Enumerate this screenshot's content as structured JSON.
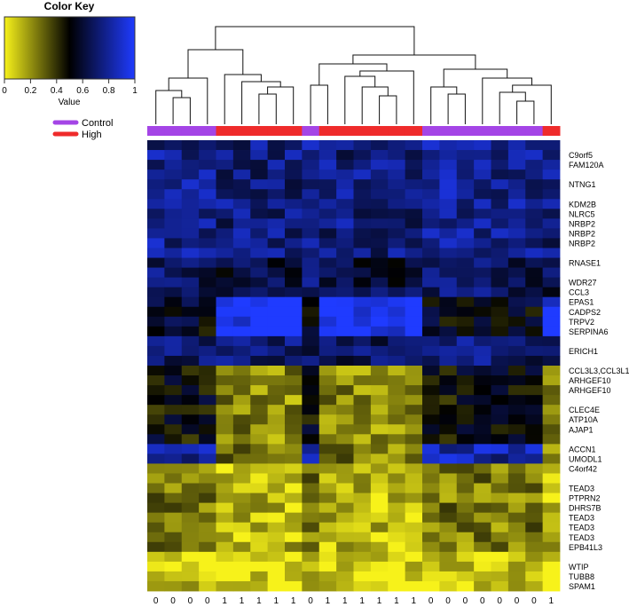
{
  "color_key": {
    "title": "Color Key",
    "ticks": [
      "0",
      "0.2",
      "0.4",
      "0.6",
      "0.8",
      "1"
    ],
    "xlabel": "Value",
    "colors": [
      "#f7f21a",
      "#000000",
      "#1f3bff"
    ]
  },
  "legend": [
    {
      "label": "Control",
      "color": "#a445e6"
    },
    {
      "label": "High",
      "color": "#ef2b2b"
    }
  ],
  "chart_data": {
    "type": "heatmap",
    "value_range": [
      0,
      1
    ],
    "columns": [
      "0",
      "0",
      "0",
      "0",
      "1",
      "1",
      "1",
      "1",
      "1",
      "0",
      "1",
      "1",
      "1",
      "1",
      "1",
      "1",
      "0",
      "0",
      "0",
      "0",
      "0",
      "0",
      "0",
      "1"
    ],
    "column_groups": [
      "Control",
      "Control",
      "Control",
      "Control",
      "High",
      "High",
      "High",
      "High",
      "High",
      "Control",
      "High",
      "High",
      "High",
      "High",
      "High",
      "High",
      "Control",
      "Control",
      "Control",
      "Control",
      "Control",
      "Control",
      "Control",
      "High"
    ],
    "rows": [
      "",
      "C9orf5",
      "FAM120A",
      "",
      "NTNG1",
      "",
      "KDM2B",
      "NLRC5",
      "NRBP2",
      "NRBP2",
      "NRBP2",
      "",
      "RNASE1",
      "",
      "WDR27",
      "CCL3",
      "EPAS1",
      "CADPS2",
      "TRPV2",
      "SERPINA6",
      "",
      "ERICH1",
      "",
      "CCL3L3,CCL3L1",
      "ARHGEF10",
      "ARHGEF10",
      "",
      "CLEC4E",
      "ATP10A",
      "AJAP1",
      "",
      "ACCN1",
      "UMODL1",
      "C4orf42",
      "",
      "TEAD3",
      "PTPRN2",
      "DHRS7B",
      "TEAD3",
      "TEAD3",
      "TEAD3",
      "EPB41L3",
      "",
      "WTIP",
      "TUBB8",
      "SPAM1"
    ],
    "row_blocks": [
      {
        "rows": [
          0,
          11
        ],
        "control": 0.78,
        "high": 0.74
      },
      {
        "rows": [
          12,
          15
        ],
        "control": 0.68,
        "high": 0.62
      },
      {
        "rows": [
          16,
          19
        ],
        "control": 0.55,
        "high": 1.0
      },
      {
        "rows": [
          20,
          22
        ],
        "control": 0.72,
        "high": 0.7
      },
      {
        "rows": [
          23,
          30
        ],
        "control": 0.5,
        "high": 0.22
      },
      {
        "rows": [
          31,
          32
        ],
        "control": 0.82,
        "high": 0.25
      },
      {
        "rows": [
          33,
          41
        ],
        "control": 0.25,
        "high": 0.12
      },
      {
        "rows": [
          42,
          45
        ],
        "control": 0.1,
        "high": 0.05
      }
    ],
    "groups_colors": {
      "Control": "#a445e6",
      "High": "#ef2b2b"
    }
  }
}
